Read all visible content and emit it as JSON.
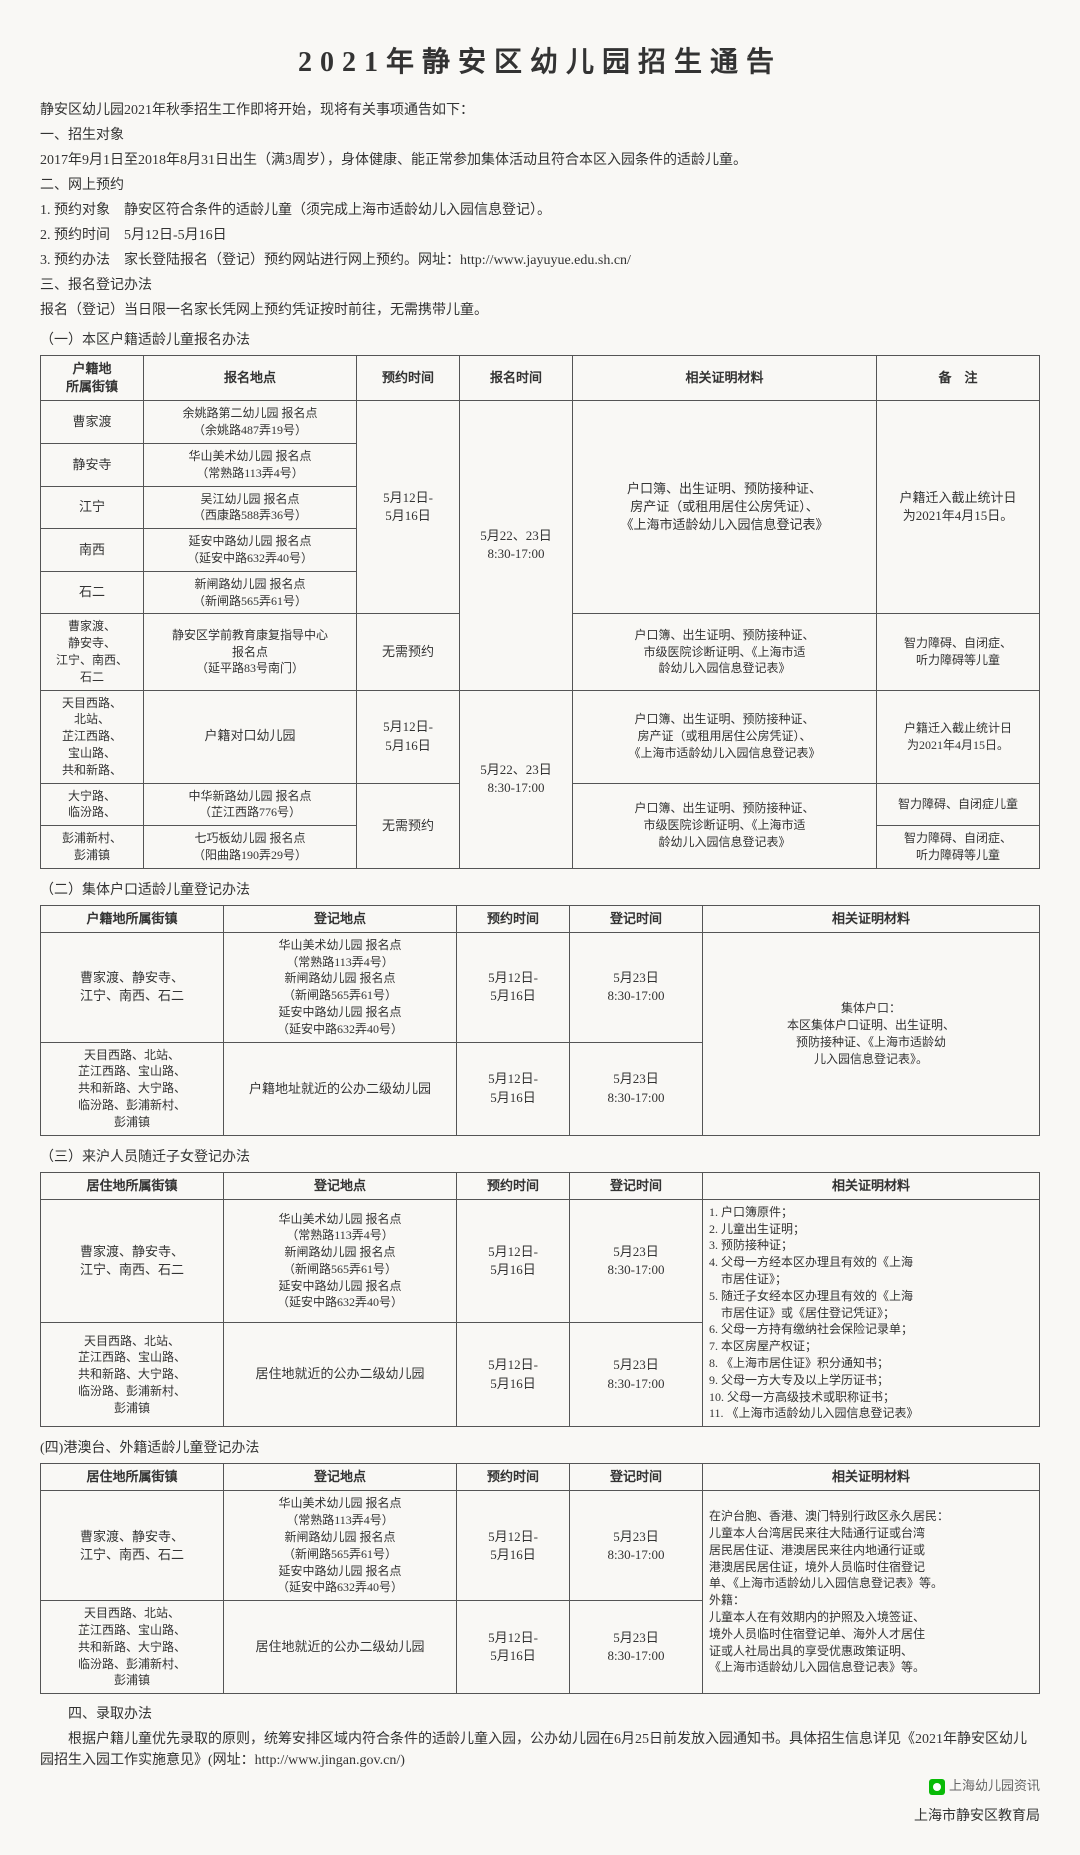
{
  "title": "2021年静安区幼儿园招生通告",
  "intro": [
    "静安区幼儿园2021年秋季招生工作即将开始，现将有关事项通告如下：",
    "一、招生对象",
    "2017年9月1日至2018年8月31日出生（满3周岁），身体健康、能正常参加集体活动且符合本区入园条件的适龄儿童。",
    "二、网上预约",
    "1. 预约对象　静安区符合条件的适龄儿童（须完成上海市适龄幼儿入园信息登记）。",
    "2. 预约时间　5月12日-5月16日",
    "3. 预约办法　家长登陆报名（登记）预约网站进行网上预约。网址：http://www.jayuyue.edu.sh.cn/",
    "三、报名登记办法",
    "报名（登记）当日限一名家长凭网上预约凭证按时前往，无需携带儿童。"
  ],
  "t1": {
    "label": "（一）本区户籍适龄儿童报名办法",
    "headers": [
      "户籍地\n所属街镇",
      "报名地点",
      "预约时间",
      "报名时间",
      "相关证明材料",
      "备　注"
    ],
    "rows": [
      {
        "town": "曹家渡",
        "place": "余姚路第二幼儿园 报名点\n（余姚路487弄19号）"
      },
      {
        "town": "静安寺",
        "place": "华山美术幼儿园 报名点\n（常熟路113弄4号）"
      },
      {
        "town": "江宁",
        "place": "吴江幼儿园 报名点\n（西康路588弄36号）"
      },
      {
        "town": "南西",
        "place": "延安中路幼儿园 报名点\n（延安中路632弄40号）"
      },
      {
        "town": "石二",
        "place": "新闸路幼儿园 报名点\n（新闸路565弄61号）"
      }
    ],
    "group1": {
      "reserve": "5月12日-\n5月16日",
      "time": "5月22、23日\n8:30-17:00",
      "docs": "户口簿、出生证明、预防接种证、\n房产证（或租用居住公房凭证）、\n《上海市适龄幼儿入园信息登记表》",
      "note": "户籍迁入截止统计日\n为2021年4月15日。"
    },
    "row6": {
      "town": "曹家渡、\n静安寺、\n江宁、南西、\n石二",
      "place": "静安区学前教育康复指导中心\n报名点\n（延平路83号南门）",
      "reserve": "无需预约",
      "docs": "户口簿、出生证明、预防接种证、\n市级医院诊断证明、《上海市适\n龄幼儿入园信息登记表》",
      "note": "智力障碍、自闭症、\n听力障碍等儿童"
    },
    "row7": {
      "town": "天目西路、\n北站、\n芷江西路、\n宝山路、\n共和新路、",
      "place": "户籍对口幼儿园",
      "reserve": "5月12日-\n5月16日",
      "time": "5月22、23日\n8:30-17:00",
      "docs": "户口簿、出生证明、预防接种证、\n房产证（或租用居住公房凭证）、\n《上海市适龄幼儿入园信息登记表》",
      "note": "户籍迁入截止统计日\n为2021年4月15日。"
    },
    "row8": {
      "town": "大宁路、\n临汾路、",
      "place": "中华新路幼儿园 报名点\n（芷江西路776号）",
      "reserve": "无需预约",
      "docs": "户口簿、出生证明、预防接种证、\n市级医院诊断证明、《上海市适\n龄幼儿入园信息登记表》",
      "note": "智力障碍、自闭症儿童"
    },
    "row9": {
      "town": "彭浦新村、\n彭浦镇",
      "place": "七巧板幼儿园 报名点\n（阳曲路190弄29号）",
      "note": "智力障碍、自闭症、\n听力障碍等儿童"
    }
  },
  "t2": {
    "label": "（二）集体户口适龄儿童登记办法",
    "headers": [
      "户籍地所属街镇",
      "登记地点",
      "预约时间",
      "登记时间",
      "相关证明材料"
    ],
    "row1": {
      "town": "曹家渡、静安寺、\n江宁、南西、石二",
      "place": "华山美术幼儿园 报名点\n（常熟路113弄4号）\n新闸路幼儿园 报名点\n（新闸路565弄61号）\n延安中路幼儿园 报名点\n（延安中路632弄40号）",
      "reserve": "5月12日-\n5月16日",
      "time": "5月23日\n8:30-17:00"
    },
    "row2": {
      "town": "天目西路、北站、\n芷江西路、宝山路、\n共和新路、大宁路、\n临汾路、彭浦新村、\n彭浦镇",
      "place": "户籍地址就近的公办二级幼儿园",
      "reserve": "5月12日-\n5月16日",
      "time": "5月23日\n8:30-17:00"
    },
    "docs": "集体户口：\n本区集体户口证明、出生证明、\n预防接种证、《上海市适龄幼\n儿入园信息登记表》。"
  },
  "t3": {
    "label": "（三）来沪人员随迁子女登记办法",
    "headers": [
      "居住地所属街镇",
      "登记地点",
      "预约时间",
      "登记时间",
      "相关证明材料"
    ],
    "row1": {
      "town": "曹家渡、静安寺、\n江宁、南西、石二",
      "place": "华山美术幼儿园 报名点\n（常熟路113弄4号）\n新闸路幼儿园 报名点\n（新闸路565弄61号）\n延安中路幼儿园 报名点\n（延安中路632弄40号）",
      "reserve": "5月12日-\n5月16日",
      "time": "5月23日\n8:30-17:00"
    },
    "row2": {
      "town": "天目西路、北站、\n芷江西路、宝山路、\n共和新路、大宁路、\n临汾路、彭浦新村、\n彭浦镇",
      "place": "居住地就近的公办二级幼儿园",
      "reserve": "5月12日-\n5月16日",
      "time": "5月23日\n8:30-17:00"
    },
    "docs": "1. 户口簿原件；\n2. 儿童出生证明；\n3. 预防接种证；\n4. 父母一方经本区办理且有效的《上海\n　市居住证》；\n5. 随迁子女经本区办理且有效的《上海\n　市居住证》或《居住登记凭证》；\n6. 父母一方持有缴纳社会保险记录单；\n7. 本区房屋产权证；\n8. 《上海市居住证》积分通知书；\n9. 父母一方大专及以上学历证书；\n10. 父母一方高级技术或职称证书；\n11. 《上海市适龄幼儿入园信息登记表》"
  },
  "t4": {
    "label": "(四)港澳台、外籍适龄儿童登记办法",
    "headers": [
      "居住地所属街镇",
      "登记地点",
      "预约时间",
      "登记时间",
      "相关证明材料"
    ],
    "row1": {
      "town": "曹家渡、静安寺、\n江宁、南西、石二",
      "place": "华山美术幼儿园 报名点\n（常熟路113弄4号）\n新闸路幼儿园 报名点\n（新闸路565弄61号）\n延安中路幼儿园 报名点\n（延安中路632弄40号）",
      "reserve": "5月12日-\n5月16日",
      "time": "5月23日\n8:30-17:00"
    },
    "row2": {
      "town": "天目西路、北站、\n芷江西路、宝山路、\n共和新路、大宁路、\n临汾路、彭浦新村、\n彭浦镇",
      "place": "居住地就近的公办二级幼儿园",
      "reserve": "5月12日-\n5月16日",
      "time": "5月23日\n8:30-17:00"
    },
    "docs": "在沪台胞、香港、澳门特别行政区永久居民：\n儿童本人台湾居民来往大陆通行证或台湾\n居民居住证、港澳居民来往内地通行证或\n港澳居民居住证，境外人员临时住宿登记\n单、《上海市适龄幼儿入园信息登记表》等。\n外籍：\n儿童本人在有效期内的护照及入境签证、\n境外人员临时住宿登记单、海外人才居住\n证或人社局出具的享受优惠政策证明、\n《上海市适龄幼儿入园信息登记表》等。"
  },
  "outro": [
    "　　四、录取办法",
    "　　根据户籍儿童优先录取的原则，统筹安排区域内符合条件的适龄儿童入园，公办幼儿园在6月25日前发放入园通知书。具体招生信息详见《2021年静安区幼儿园招生入园工作实施意见》(网址：http://www.jingan.gov.cn/)"
  ],
  "wechat": "上海幼儿园资讯",
  "footer": "上海市静安区教育局"
}
